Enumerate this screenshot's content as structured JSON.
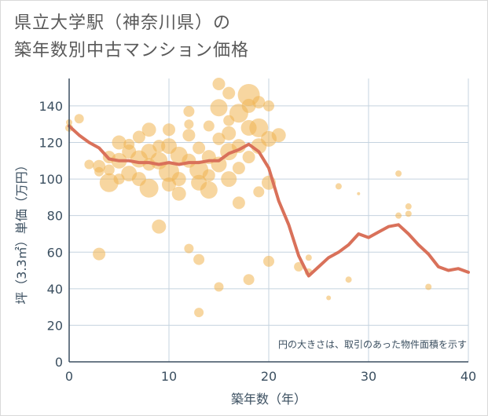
{
  "title_line1": "県立大学駅（神奈川県）の",
  "title_line2": "築年数別中古マンション価格",
  "chart_data": {
    "type": "scatter",
    "title": "県立大学駅（神奈川県）の築年数別中古マンション価格",
    "xlabel": "築年数（年）",
    "ylabel": "坪（3.3㎡）単価（万円）",
    "xlim": [
      0,
      40
    ],
    "ylim": [
      0,
      155
    ],
    "x_ticks": [
      0,
      10,
      20,
      30,
      40
    ],
    "y_ticks": [
      0,
      20,
      40,
      60,
      80,
      100,
      120,
      140
    ],
    "grid": true,
    "note": "円の大きさは、取引のあった物件面積を示す",
    "colors": {
      "bubble": "#f0b552",
      "line": "#d9715a",
      "grid": "#c5d3df",
      "text": "#3b4f60"
    },
    "series": [
      {
        "type": "bubble",
        "points": [
          [
            0,
            128,
            5
          ],
          [
            0,
            131,
            4
          ],
          [
            1,
            133,
            6
          ],
          [
            2,
            108,
            6
          ],
          [
            3,
            107,
            8
          ],
          [
            3,
            59,
            8
          ],
          [
            3,
            104,
            6
          ],
          [
            4,
            98,
            12
          ],
          [
            4,
            112,
            8
          ],
          [
            4,
            105,
            7
          ],
          [
            5,
            120,
            9
          ],
          [
            5,
            110,
            10
          ],
          [
            5,
            100,
            7
          ],
          [
            6,
            115,
            9
          ],
          [
            6,
            103,
            10
          ],
          [
            6,
            119,
            7
          ],
          [
            7,
            111,
            11
          ],
          [
            7,
            123,
            8
          ],
          [
            7,
            100,
            9
          ],
          [
            8,
            127,
            9
          ],
          [
            8,
            115,
            10
          ],
          [
            8,
            95,
            12
          ],
          [
            8,
            108,
            8
          ],
          [
            9,
            110,
            11
          ],
          [
            9,
            74,
            9
          ],
          [
            9,
            118,
            8
          ],
          [
            10,
            104,
            13
          ],
          [
            10,
            118,
            10
          ],
          [
            10,
            127,
            8
          ],
          [
            10,
            97,
            9
          ],
          [
            11,
            100,
            9
          ],
          [
            11,
            113,
            11
          ],
          [
            11,
            92,
            9
          ],
          [
            12,
            137,
            7
          ],
          [
            12,
            124,
            8
          ],
          [
            12,
            110,
            9
          ],
          [
            12,
            62,
            6
          ],
          [
            12,
            130,
            6
          ],
          [
            13,
            105,
            12
          ],
          [
            13,
            98,
            10
          ],
          [
            13,
            117,
            8
          ],
          [
            13,
            56,
            7
          ],
          [
            13,
            27,
            6
          ],
          [
            14,
            94,
            11
          ],
          [
            14,
            112,
            9
          ],
          [
            14,
            129,
            7
          ],
          [
            14,
            102,
            8
          ],
          [
            15,
            152,
            8
          ],
          [
            15,
            139,
            11
          ],
          [
            15,
            108,
            10
          ],
          [
            15,
            122,
            8
          ],
          [
            15,
            41,
            6
          ],
          [
            16,
            147,
            8
          ],
          [
            16,
            125,
            9
          ],
          [
            16,
            115,
            11
          ],
          [
            16,
            100,
            10
          ],
          [
            16,
            132,
            7
          ],
          [
            17,
            136,
            12
          ],
          [
            17,
            118,
            9
          ],
          [
            17,
            106,
            8
          ],
          [
            17,
            87,
            8
          ],
          [
            18,
            146,
            14
          ],
          [
            18,
            140,
            9
          ],
          [
            18,
            128,
            10
          ],
          [
            18,
            112,
            8
          ],
          [
            18,
            45,
            7
          ],
          [
            19,
            128,
            12
          ],
          [
            19,
            118,
            10
          ],
          [
            19,
            93,
            7
          ],
          [
            19,
            142,
            8
          ],
          [
            20,
            122,
            10
          ],
          [
            20,
            140,
            7
          ],
          [
            20,
            98,
            9
          ],
          [
            20,
            55,
            7
          ],
          [
            21,
            124,
            9
          ],
          [
            23,
            52,
            6
          ],
          [
            24,
            57,
            4
          ],
          [
            24,
            49,
            5
          ],
          [
            26,
            35,
            3
          ],
          [
            27,
            96,
            4
          ],
          [
            28,
            45,
            4
          ],
          [
            29,
            92,
            2
          ],
          [
            33,
            103,
            4
          ],
          [
            33,
            80,
            4
          ],
          [
            34,
            85,
            4
          ],
          [
            34,
            81,
            4
          ],
          [
            36,
            41,
            4
          ]
        ]
      },
      {
        "type": "line",
        "points": [
          [
            0,
            129
          ],
          [
            1,
            124
          ],
          [
            2,
            120
          ],
          [
            3,
            117
          ],
          [
            4,
            111
          ],
          [
            5,
            110
          ],
          [
            6,
            110
          ],
          [
            7,
            109
          ],
          [
            8,
            109
          ],
          [
            9,
            108
          ],
          [
            10,
            109
          ],
          [
            11,
            108
          ],
          [
            12,
            109
          ],
          [
            13,
            109
          ],
          [
            14,
            110
          ],
          [
            15,
            110
          ],
          [
            16,
            114
          ],
          [
            17,
            116
          ],
          [
            18,
            119
          ],
          [
            19,
            115
          ],
          [
            20,
            106
          ],
          [
            21,
            88
          ],
          [
            22,
            75
          ],
          [
            23,
            58
          ],
          [
            24,
            47
          ],
          [
            25,
            52
          ],
          [
            26,
            57
          ],
          [
            27,
            60
          ],
          [
            28,
            64
          ],
          [
            29,
            70
          ],
          [
            30,
            68
          ],
          [
            31,
            71
          ],
          [
            32,
            74
          ],
          [
            33,
            75
          ],
          [
            34,
            70
          ],
          [
            35,
            64
          ],
          [
            36,
            59
          ],
          [
            37,
            52
          ],
          [
            38,
            50
          ],
          [
            39,
            51
          ],
          [
            40,
            49
          ]
        ]
      }
    ]
  }
}
